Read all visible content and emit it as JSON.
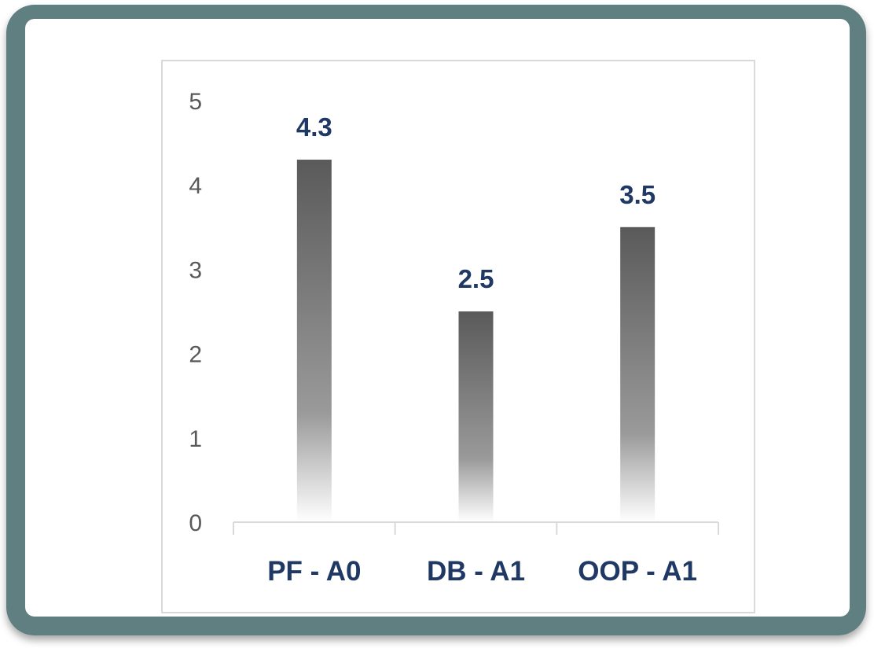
{
  "chart_data": {
    "type": "bar",
    "categories": [
      "PF - A0",
      "DB - A1",
      "OOP - A1"
    ],
    "values": [
      4.3,
      2.5,
      3.5
    ],
    "data_labels": [
      "4.3",
      "2.5",
      "3.5"
    ],
    "yticks": [
      "0",
      "1",
      "2",
      "3",
      "4",
      "5"
    ],
    "ylim": [
      0,
      5
    ],
    "grid": false,
    "legend": "none",
    "colors": {
      "bar_top": "#5a5a5a",
      "bar_mid": "#9a9a9a",
      "bar_bottom": "#ffffff",
      "data_label": "#1f3864",
      "category_label": "#1f3864",
      "tick_label": "#595959",
      "frame": "#5f7f80"
    }
  }
}
